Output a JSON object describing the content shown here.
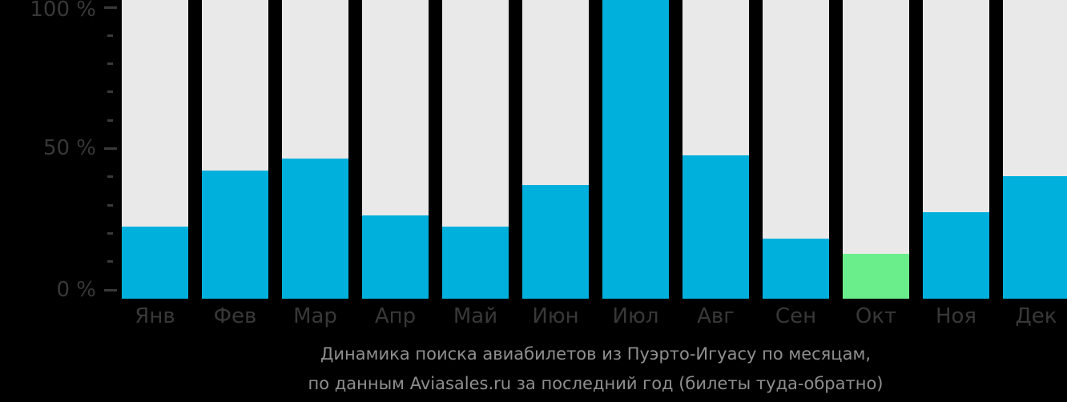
{
  "chart_data": {
    "type": "bar",
    "categories": [
      "Янв",
      "Фев",
      "Мар",
      "Апр",
      "Май",
      "Июн",
      "Июл",
      "Авг",
      "Сен",
      "Окт",
      "Ноя",
      "Дек"
    ],
    "values": [
      24,
      43,
      47,
      28,
      24,
      38,
      100,
      48,
      20,
      15,
      29,
      41
    ],
    "highlight_index": 9,
    "title_line1": "Динамика поиска авиабилетов из Пуэрто-Игуасу по месяцам,",
    "title_line2": "по данным Aviasales.ru за последний год (билеты туда-обратно)",
    "y_tick_labels": [
      "100 %",
      "50 %",
      "0 %"
    ],
    "ylim": [
      0,
      100
    ],
    "grid": "off",
    "legend": "none",
    "xlabel": "",
    "ylabel": "",
    "colors": {
      "background": "#000000",
      "bar_track": "#e9e9e9",
      "bar_fill": "#00b0dc",
      "bar_highlight": "#6aee8b",
      "axis_text": "#383838",
      "title_text": "#8f8f8f"
    }
  }
}
